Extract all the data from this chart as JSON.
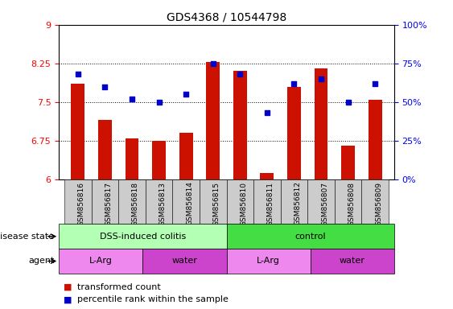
{
  "title": "GDS4368 / 10544798",
  "samples": [
    "GSM856816",
    "GSM856817",
    "GSM856818",
    "GSM856813",
    "GSM856814",
    "GSM856815",
    "GSM856810",
    "GSM856811",
    "GSM856812",
    "GSM856807",
    "GSM856808",
    "GSM856809"
  ],
  "red_values": [
    7.85,
    7.15,
    6.8,
    6.75,
    6.9,
    8.28,
    8.1,
    6.12,
    7.8,
    8.15,
    6.65,
    7.55
  ],
  "blue_values_pct": [
    68,
    60,
    52,
    50,
    55,
    75,
    68,
    43,
    62,
    65,
    50,
    62
  ],
  "ylim_left": [
    6.0,
    9.0
  ],
  "ylim_right": [
    0,
    100
  ],
  "yticks_left": [
    6.0,
    6.75,
    7.5,
    8.25,
    9.0
  ],
  "yticks_right": [
    0,
    25,
    50,
    75,
    100
  ],
  "ytick_labels_left": [
    "6",
    "6.75",
    "7.5",
    "8.25",
    "9"
  ],
  "ytick_labels_right": [
    "0%",
    "25%",
    "50%",
    "75%",
    "100%"
  ],
  "hlines": [
    6.75,
    7.5,
    8.25
  ],
  "bar_color": "#cc1100",
  "dot_color": "#0000cc",
  "bar_bottom": 6.0,
  "disease_state_groups": [
    {
      "label": "DSS-induced colitis",
      "start": 0,
      "end": 6,
      "color": "#b3ffb3"
    },
    {
      "label": "control",
      "start": 6,
      "end": 12,
      "color": "#44dd44"
    }
  ],
  "agent_groups": [
    {
      "label": "L-Arg",
      "start": 0,
      "end": 3,
      "color": "#ee88ee"
    },
    {
      "label": "water",
      "start": 3,
      "end": 6,
      "color": "#cc44cc"
    },
    {
      "label": "L-Arg",
      "start": 6,
      "end": 9,
      "color": "#ee88ee"
    },
    {
      "label": "water",
      "start": 9,
      "end": 12,
      "color": "#cc44cc"
    }
  ],
  "legend_items": [
    {
      "label": "transformed count",
      "color": "#cc1100"
    },
    {
      "label": "percentile rank within the sample",
      "color": "#0000cc"
    }
  ],
  "tick_area_color": "#cccccc",
  "background_color": "#ffffff"
}
